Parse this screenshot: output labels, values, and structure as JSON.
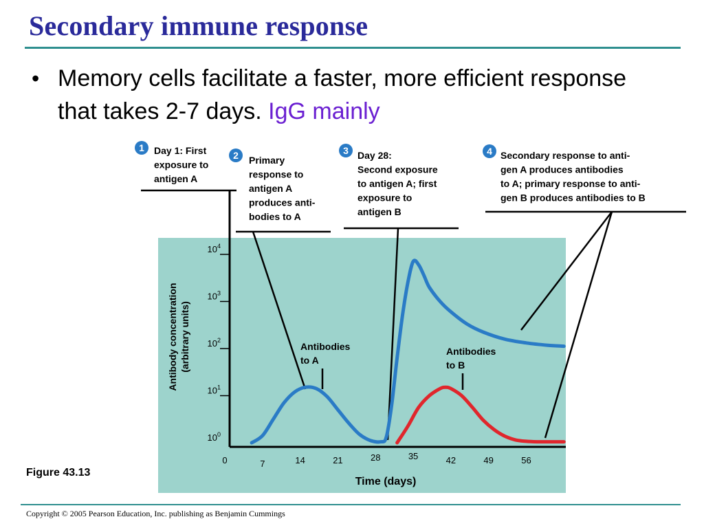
{
  "slide": {
    "title": "Secondary immune response",
    "bullet_marker": "•",
    "bullet_text": "Memory cells facilitate a faster, more efficient response that takes 2-7 days. ",
    "bullet_highlight": "IgG mainly",
    "figure_label": "Figure 43.13",
    "copyright": "Copyright © 2005 Pearson Education, Inc. publishing as Benjamin Cummings"
  },
  "colors": {
    "title": "#2a2a9a",
    "highlight": "#6a1fd1",
    "rule": "#2e8f8f",
    "plot_bg": "#9dd3cc",
    "antibody_a": "#2a7bc6",
    "antibody_b": "#e0262c",
    "step_badge": "#2a7bc6"
  },
  "callouts": [
    {
      "number": "1",
      "lines": [
        "Day 1: First",
        "exposure to",
        "antigen A"
      ]
    },
    {
      "number": "2",
      "lines": [
        "Primary",
        "response to",
        "antigen A",
        "produces anti-",
        "bodies to A"
      ]
    },
    {
      "number": "3",
      "lines": [
        "Day 28:",
        "Second exposure",
        "to antigen A; first",
        "exposure to",
        "antigen B"
      ]
    },
    {
      "number": "4",
      "lines": [
        "Secondary response to anti-",
        "gen A produces antibodies",
        "to A; primary response to anti-",
        "gen B produces antibodies to B"
      ]
    }
  ],
  "chart_data": {
    "type": "line",
    "xlabel": "Time (days)",
    "ylabel_lines": [
      "Antibody concentration",
      "(arbitrary units)"
    ],
    "y_scale": "log10",
    "xlim": [
      0,
      63
    ],
    "ylim_exponent": [
      0,
      4
    ],
    "x_ticks": [
      "0",
      "7",
      "14",
      "21",
      "28",
      "35",
      "42",
      "49",
      "56"
    ],
    "y_ticks": [
      {
        "base": "10",
        "exp": "0"
      },
      {
        "base": "10",
        "exp": "1"
      },
      {
        "base": "10",
        "exp": "2"
      },
      {
        "base": "10",
        "exp": "3"
      },
      {
        "base": "10",
        "exp": "4"
      }
    ],
    "grid": false,
    "series": [
      {
        "name": "Antibodies to A",
        "label_lines": [
          "Antibodies",
          "to A"
        ],
        "color": "#2a7bc6",
        "points": [
          [
            5,
            0
          ],
          [
            7,
            0.15
          ],
          [
            9,
            0.5
          ],
          [
            11,
            0.85
          ],
          [
            13,
            1.08
          ],
          [
            15,
            1.18
          ],
          [
            17,
            1.15
          ],
          [
            19,
            0.98
          ],
          [
            21,
            0.7
          ],
          [
            23,
            0.42
          ],
          [
            25,
            0.18
          ],
          [
            27,
            0.05
          ],
          [
            29,
            0.02
          ],
          [
            30,
            0.12
          ],
          [
            31,
            0.8
          ],
          [
            32,
            1.8
          ],
          [
            33,
            2.7
          ],
          [
            34,
            3.4
          ],
          [
            35,
            3.85
          ],
          [
            36,
            3.78
          ],
          [
            37,
            3.55
          ],
          [
            38,
            3.3
          ],
          [
            40,
            3.0
          ],
          [
            42,
            2.78
          ],
          [
            45,
            2.52
          ],
          [
            48,
            2.35
          ],
          [
            52,
            2.2
          ],
          [
            56,
            2.12
          ],
          [
            60,
            2.07
          ],
          [
            63,
            2.05
          ]
        ]
      },
      {
        "name": "Antibodies to B",
        "label_lines": [
          "Antibodies",
          "to B"
        ],
        "color": "#e0262c",
        "points": [
          [
            32,
            0
          ],
          [
            34,
            0.35
          ],
          [
            36,
            0.75
          ],
          [
            38,
            1.0
          ],
          [
            40,
            1.15
          ],
          [
            41,
            1.18
          ],
          [
            42,
            1.15
          ],
          [
            44,
            1.0
          ],
          [
            46,
            0.75
          ],
          [
            48,
            0.48
          ],
          [
            50,
            0.28
          ],
          [
            52,
            0.14
          ],
          [
            54,
            0.06
          ],
          [
            56,
            0.03
          ],
          [
            58,
            0.02
          ],
          [
            60,
            0.02
          ],
          [
            63,
            0.02
          ]
        ]
      }
    ]
  }
}
